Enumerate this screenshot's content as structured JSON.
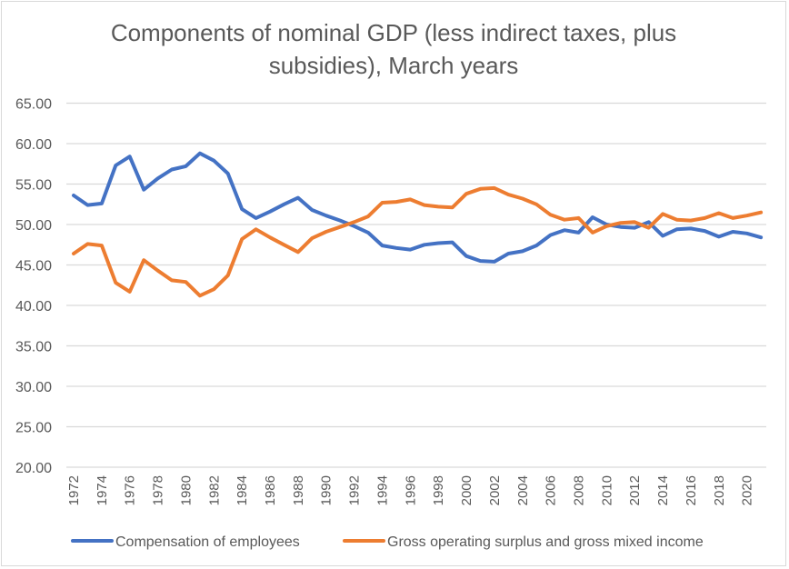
{
  "chart_data": {
    "type": "line",
    "title": "Components of nominal GDP (less indirect taxes, plus subsidies), March years",
    "title_lines": [
      "Components of nominal GDP (less indirect taxes, plus",
      "subsidies), March years"
    ],
    "xlabel": "",
    "ylabel": "",
    "ylim": [
      20,
      65
    ],
    "y_ticks": [
      "20.00",
      "25.00",
      "30.00",
      "35.00",
      "40.00",
      "45.00",
      "50.00",
      "55.00",
      "60.00",
      "65.00"
    ],
    "y_tick_values": [
      20,
      25,
      30,
      35,
      40,
      45,
      50,
      55,
      60,
      65
    ],
    "grid": true,
    "legend_position": "bottom",
    "x": [
      1972,
      1973,
      1974,
      1975,
      1976,
      1977,
      1978,
      1979,
      1980,
      1981,
      1982,
      1983,
      1984,
      1985,
      1986,
      1987,
      1988,
      1989,
      1990,
      1991,
      1992,
      1993,
      1994,
      1995,
      1996,
      1997,
      1998,
      1999,
      2000,
      2001,
      2002,
      2003,
      2004,
      2005,
      2006,
      2007,
      2008,
      2009,
      2010,
      2011,
      2012,
      2013,
      2014,
      2015,
      2016,
      2017,
      2018,
      2019,
      2020,
      2021
    ],
    "x_tick_labels": [
      "1972",
      "1974",
      "1976",
      "1978",
      "1980",
      "1982",
      "1984",
      "1986",
      "1988",
      "1990",
      "1992",
      "1994",
      "1996",
      "1998",
      "2000",
      "2002",
      "2004",
      "2006",
      "2008",
      "2010",
      "2012",
      "2014",
      "2016",
      "2018",
      "2020"
    ],
    "series": [
      {
        "name": "Compensation of employees",
        "color": "#4472C4",
        "values": [
          53.6,
          52.4,
          52.6,
          57.3,
          58.4,
          54.3,
          55.7,
          56.8,
          57.2,
          58.8,
          57.9,
          56.3,
          51.9,
          50.8,
          51.6,
          52.5,
          53.3,
          51.8,
          51.1,
          50.5,
          49.8,
          49.0,
          47.4,
          47.1,
          46.9,
          47.5,
          47.7,
          47.8,
          46.1,
          45.5,
          45.4,
          46.4,
          46.7,
          47.4,
          48.7,
          49.3,
          49.0,
          50.9,
          50.0,
          49.7,
          49.6,
          50.3,
          48.6,
          49.4,
          49.5,
          49.2,
          48.5,
          49.1,
          48.9,
          48.4
        ]
      },
      {
        "name": "Gross operating surplus and gross mixed income",
        "color": "#ED7D31",
        "values": [
          46.4,
          47.6,
          47.4,
          42.8,
          41.7,
          45.6,
          44.3,
          43.1,
          42.9,
          41.2,
          42.0,
          43.7,
          48.2,
          49.4,
          48.4,
          47.5,
          46.6,
          48.3,
          49.1,
          49.7,
          50.3,
          51.0,
          52.7,
          52.8,
          53.1,
          52.4,
          52.2,
          52.1,
          53.8,
          54.4,
          54.5,
          53.7,
          53.2,
          52.5,
          51.2,
          50.6,
          50.8,
          49.0,
          49.8,
          50.2,
          50.3,
          49.6,
          51.3,
          50.6,
          50.5,
          50.8,
          51.4,
          50.8,
          51.1,
          51.5
        ]
      }
    ]
  }
}
